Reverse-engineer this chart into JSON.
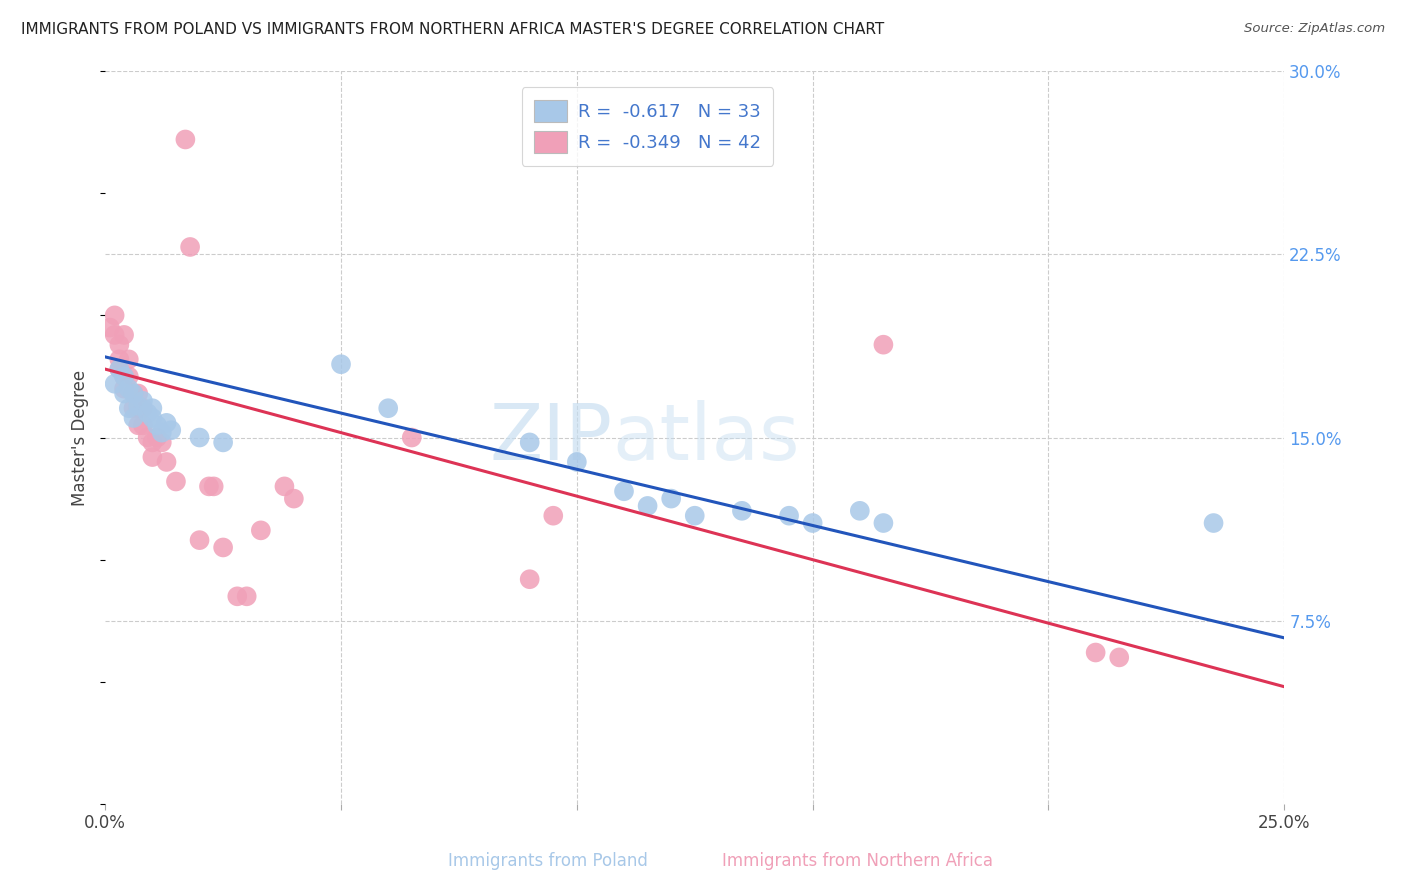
{
  "title": "IMMIGRANTS FROM POLAND VS IMMIGRANTS FROM NORTHERN AFRICA MASTER'S DEGREE CORRELATION CHART",
  "source": "Source: ZipAtlas.com",
  "xlabel_blue": "Immigrants from Poland",
  "xlabel_pink": "Immigrants from Northern Africa",
  "ylabel": "Master's Degree",
  "xlim": [
    0.0,
    0.25
  ],
  "ylim": [
    0.0,
    0.3
  ],
  "xticks": [
    0.0,
    0.05,
    0.1,
    0.15,
    0.2,
    0.25
  ],
  "yticks": [
    0.0,
    0.075,
    0.15,
    0.225,
    0.3
  ],
  "ytick_right_labels": [
    "",
    "7.5%",
    "15.0%",
    "22.5%",
    "30.0%"
  ],
  "background_color": "#ffffff",
  "blue_color": "#a8c8e8",
  "pink_color": "#f0a0b8",
  "blue_line_color": "#2255bb",
  "pink_line_color": "#dd3355",
  "watermark_zip": "ZIP",
  "watermark_atlas": "atlas",
  "blue_points": [
    [
      0.002,
      0.172
    ],
    [
      0.003,
      0.178
    ],
    [
      0.004,
      0.168
    ],
    [
      0.004,
      0.175
    ],
    [
      0.005,
      0.17
    ],
    [
      0.005,
      0.162
    ],
    [
      0.006,
      0.168
    ],
    [
      0.006,
      0.158
    ],
    [
      0.007,
      0.163
    ],
    [
      0.008,
      0.165
    ],
    [
      0.009,
      0.16
    ],
    [
      0.01,
      0.158
    ],
    [
      0.01,
      0.162
    ],
    [
      0.011,
      0.155
    ],
    [
      0.012,
      0.152
    ],
    [
      0.013,
      0.156
    ],
    [
      0.014,
      0.153
    ],
    [
      0.02,
      0.15
    ],
    [
      0.025,
      0.148
    ],
    [
      0.05,
      0.18
    ],
    [
      0.06,
      0.162
    ],
    [
      0.09,
      0.148
    ],
    [
      0.1,
      0.14
    ],
    [
      0.11,
      0.128
    ],
    [
      0.115,
      0.122
    ],
    [
      0.12,
      0.125
    ],
    [
      0.125,
      0.118
    ],
    [
      0.135,
      0.12
    ],
    [
      0.145,
      0.118
    ],
    [
      0.15,
      0.115
    ],
    [
      0.16,
      0.12
    ],
    [
      0.165,
      0.115
    ],
    [
      0.235,
      0.115
    ]
  ],
  "pink_points": [
    [
      0.001,
      0.195
    ],
    [
      0.002,
      0.2
    ],
    [
      0.002,
      0.192
    ],
    [
      0.003,
      0.188
    ],
    [
      0.003,
      0.182
    ],
    [
      0.003,
      0.178
    ],
    [
      0.004,
      0.192
    ],
    [
      0.004,
      0.175
    ],
    [
      0.004,
      0.17
    ],
    [
      0.005,
      0.182
    ],
    [
      0.005,
      0.175
    ],
    [
      0.006,
      0.168
    ],
    [
      0.006,
      0.162
    ],
    [
      0.007,
      0.168
    ],
    [
      0.007,
      0.162
    ],
    [
      0.007,
      0.155
    ],
    [
      0.008,
      0.162
    ],
    [
      0.008,
      0.155
    ],
    [
      0.009,
      0.15
    ],
    [
      0.01,
      0.148
    ],
    [
      0.01,
      0.142
    ],
    [
      0.011,
      0.15
    ],
    [
      0.012,
      0.148
    ],
    [
      0.013,
      0.14
    ],
    [
      0.015,
      0.132
    ],
    [
      0.017,
      0.272
    ],
    [
      0.018,
      0.228
    ],
    [
      0.02,
      0.108
    ],
    [
      0.022,
      0.13
    ],
    [
      0.023,
      0.13
    ],
    [
      0.025,
      0.105
    ],
    [
      0.028,
      0.085
    ],
    [
      0.03,
      0.085
    ],
    [
      0.033,
      0.112
    ],
    [
      0.038,
      0.13
    ],
    [
      0.04,
      0.125
    ],
    [
      0.065,
      0.15
    ],
    [
      0.09,
      0.092
    ],
    [
      0.095,
      0.118
    ],
    [
      0.165,
      0.188
    ],
    [
      0.21,
      0.062
    ],
    [
      0.215,
      0.06
    ]
  ],
  "blue_intercept": 0.183,
  "blue_slope": -0.46,
  "pink_intercept": 0.178,
  "pink_slope": -0.52
}
